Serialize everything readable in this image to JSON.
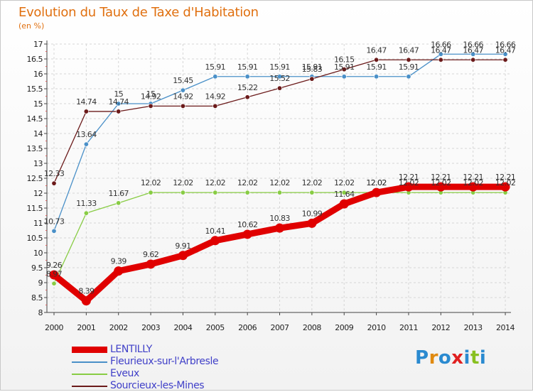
{
  "chart_data": {
    "type": "line",
    "title": "Evolution du Taux de Taxe d'Habitation",
    "unit_label": "(en %)",
    "x": [
      "2000",
      "2001",
      "2002",
      "2003",
      "2004",
      "2005",
      "2006",
      "2007",
      "2008",
      "2009",
      "2010",
      "2011",
      "2012",
      "2013",
      "2014"
    ],
    "ylim": [
      8,
      17
    ],
    "yticks": [
      "8",
      "8.5",
      "9",
      "9.5",
      "10",
      "10.5",
      "11",
      "11.5",
      "12",
      "12.5",
      "13",
      "13.5",
      "14",
      "14.5",
      "15",
      "15.5",
      "16",
      "16.5",
      "17"
    ],
    "grid": true,
    "legend_position": "bottom-left",
    "series": [
      {
        "name": "LENTILLY",
        "color": "#e00000",
        "values": [
          9.26,
          8.39,
          9.39,
          9.62,
          9.91,
          10.41,
          10.62,
          10.83,
          10.99,
          11.64,
          12.02,
          12.21,
          12.21,
          12.21,
          12.21
        ],
        "labels": [
          "9.26",
          "8.39",
          "9.39",
          "9.62",
          "9.91",
          "10.41",
          "10.62",
          "10.83",
          "10.99",
          "11.64",
          "12.02",
          "12.21",
          "12.21",
          "12.21",
          "12.21"
        ]
      },
      {
        "name": "Fleurieux-sur-l'Arbresle",
        "color": "#4a90c8",
        "values": [
          10.73,
          13.64,
          15,
          15,
          15.45,
          15.91,
          15.91,
          15.91,
          15.91,
          15.91,
          15.91,
          15.91,
          16.66,
          16.66,
          16.66
        ],
        "labels": [
          "10.73",
          "13.64",
          "15",
          "15",
          "15.45",
          "15.91",
          "15.91",
          "15.91",
          "15.91",
          "15.91",
          "15.91",
          "15.91",
          "16.66",
          "16.66",
          "16.66"
        ]
      },
      {
        "name": "Eveux",
        "color": "#88cc44",
        "values": [
          8.97,
          11.33,
          11.67,
          12.02,
          12.02,
          12.02,
          12.02,
          12.02,
          12.02,
          12.02,
          12.02,
          12.02,
          12.02,
          12.02,
          12.02
        ],
        "labels": [
          "8.97",
          "11.33",
          "11.67",
          "12.02",
          "12.02",
          "12.02",
          "12.02",
          "12.02",
          "12.02",
          "12.02",
          "12.02",
          "12.02",
          "12.02",
          "12.02",
          "12.02"
        ]
      },
      {
        "name": "Sourcieux-les-Mines",
        "color": "#6b1a1a",
        "values": [
          12.33,
          14.74,
          14.74,
          14.92,
          14.92,
          14.92,
          15.22,
          15.52,
          15.83,
          16.15,
          16.47,
          16.47,
          16.47,
          16.47,
          16.47
        ],
        "labels": [
          "12.33",
          "14.74",
          "14.74",
          "14.92",
          "14.92",
          "14.92",
          "15.22",
          "15.52",
          "15.83",
          "16.15",
          "16.47",
          "16.47",
          "16.47",
          "16.47",
          "16.47"
        ]
      }
    ]
  },
  "logo": {
    "letters": [
      "P",
      "r",
      "o",
      "x",
      "i",
      "t",
      "i"
    ],
    "colors": [
      "#2a8ad0",
      "#e08a10",
      "#2a8ad0",
      "#e02020",
      "#2a8ad0",
      "#88c020",
      "#2a8ad0"
    ]
  }
}
